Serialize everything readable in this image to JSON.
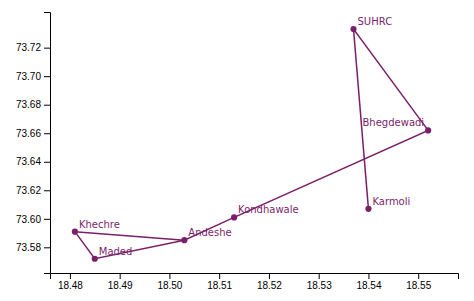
{
  "chart_data": {
    "type": "line",
    "grid": false,
    "xlim": [
      18.476,
      18.558
    ],
    "ylim": [
      73.562,
      73.745
    ],
    "xticks": [
      18.48,
      18.49,
      {
        "value": 18.5,
        "label": "18.50"
      },
      18.51,
      18.52,
      18.53,
      18.54,
      18.55
    ],
    "yticks": [
      73.58,
      {
        "value": 73.6,
        "label": "73.60"
      },
      73.62,
      73.64,
      73.66,
      73.68,
      {
        "value": 73.7,
        "label": "73.70"
      },
      73.72
    ],
    "series": [
      {
        "type": "line",
        "color": "#7B1F6A",
        "x": [
          18.481,
          18.485,
          18.503,
          18.481,
          18.503,
          18.513,
          18.552,
          18.537,
          18.54,
          18.537
        ],
        "values": [
          73.591,
          73.572,
          73.585,
          73.591,
          73.585,
          73.601,
          73.662,
          73.733,
          73.607,
          73.733
        ]
      },
      {
        "type": "scatter",
        "marker": "circle",
        "color": "#7B1F6A",
        "x": [
          18.481,
          18.485,
          18.503,
          18.513,
          18.537,
          18.54,
          18.552
        ],
        "values": [
          73.591,
          73.572,
          73.585,
          73.601,
          73.733,
          73.607,
          73.662
        ],
        "labels": [
          "Khechre",
          "Maded",
          "Andeshe",
          "Kondhawale",
          "SUHRC",
          "Karmoli",
          "Bhegdewadi"
        ]
      }
    ]
  }
}
